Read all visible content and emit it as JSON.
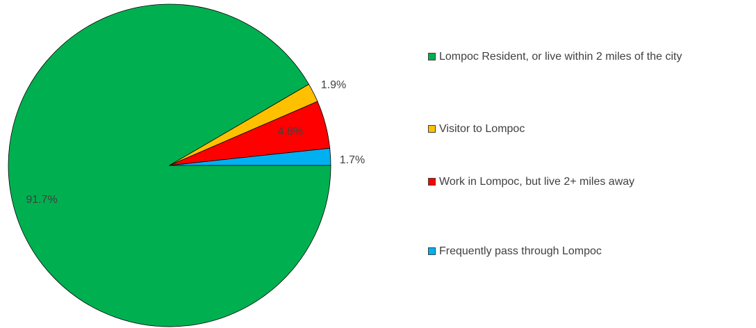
{
  "chart_data": {
    "type": "pie",
    "categories": [
      "Lompoc Resident, or live within 2 miles of the city",
      "Visitor to Lompoc",
      "Work in Lompoc, but live 2+ miles away",
      "Frequently pass through Lompoc"
    ],
    "values": [
      91.7,
      1.9,
      4.8,
      1.7
    ],
    "value_labels": [
      "91.7%",
      "1.9%",
      "4.8%",
      "1.7%"
    ],
    "colors": [
      "#00b050",
      "#ffc000",
      "#ff0000",
      "#00b0f0"
    ],
    "legend": "right"
  }
}
